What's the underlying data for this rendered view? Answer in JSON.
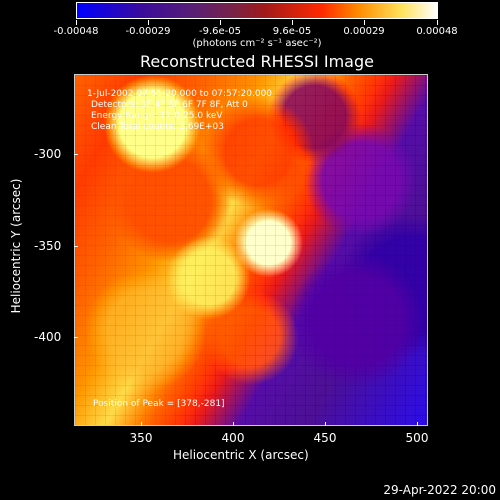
{
  "colorbar": {
    "labels": [
      "-0.00048",
      "-0.00029",
      "-9.6e-05",
      "9.6e-05",
      "0.00029",
      "0.00048"
    ],
    "units": "(photons cm⁻² s⁻¹ asec⁻²)"
  },
  "plot": {
    "title": "Reconstructed RHESSI Image",
    "info_lines": [
      "1-Jul-2002 07:51:20.000 to 07:57:20.000",
      "Detectors: 3F 4F 5F 6F 7F 8F, Att 0",
      "Energy Range: 12.0-25.0 keV",
      "Clean    Total counts: 3.69E+03"
    ],
    "peak_text": "Position of Peak = [378,-281]",
    "x_axis": {
      "label": "Heliocentric X (arcsec)",
      "ticks": [
        "350",
        "400",
        "450",
        "500"
      ]
    },
    "y_axis": {
      "label": "Heliocentric Y (arcsec)",
      "ticks": [
        "-300",
        "-350",
        "-400"
      ]
    }
  },
  "footer": {
    "timestamp": "29-Apr-2022 20:00"
  }
}
